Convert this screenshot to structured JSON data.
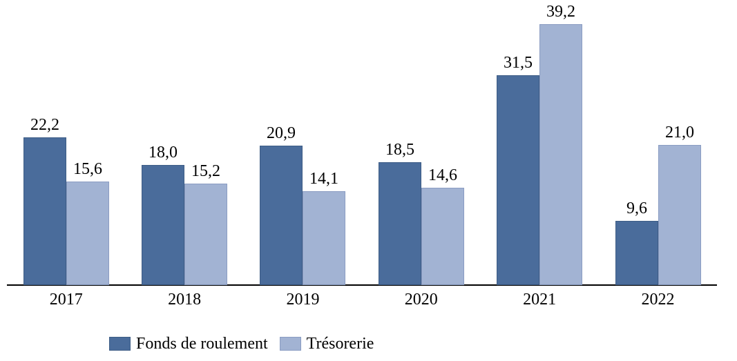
{
  "chart_data": {
    "type": "bar",
    "title": "",
    "xlabel": "",
    "ylabel": "",
    "categories": [
      "2017",
      "2018",
      "2019",
      "2020",
      "2021",
      "2022"
    ],
    "series": [
      {
        "name": "Fonds de roulement",
        "color": "#4A6C9B",
        "border_color": "#3D5C85",
        "values": [
          22.2,
          18.0,
          20.9,
          18.5,
          31.5,
          9.6
        ],
        "labels": [
          "22,2",
          "18,0",
          "20,9",
          "18,5",
          "31,5",
          "9,6"
        ]
      },
      {
        "name": "Trésorerie",
        "color": "#A2B3D3",
        "border_color": "#8A9CC2",
        "values": [
          15.6,
          15.2,
          14.1,
          14.6,
          39.2,
          21.0
        ],
        "labels": [
          "15,6",
          "15,2",
          "14,1",
          "14,6",
          "39,2",
          "21,0"
        ]
      }
    ],
    "value_format": "decimal-comma",
    "data_labels_shown": true,
    "ylim": [
      0,
      40
    ],
    "y_axis_shown": false,
    "grid": false,
    "axis_color": "#000000",
    "label_color": "#000000",
    "legend_position": "bottom"
  }
}
